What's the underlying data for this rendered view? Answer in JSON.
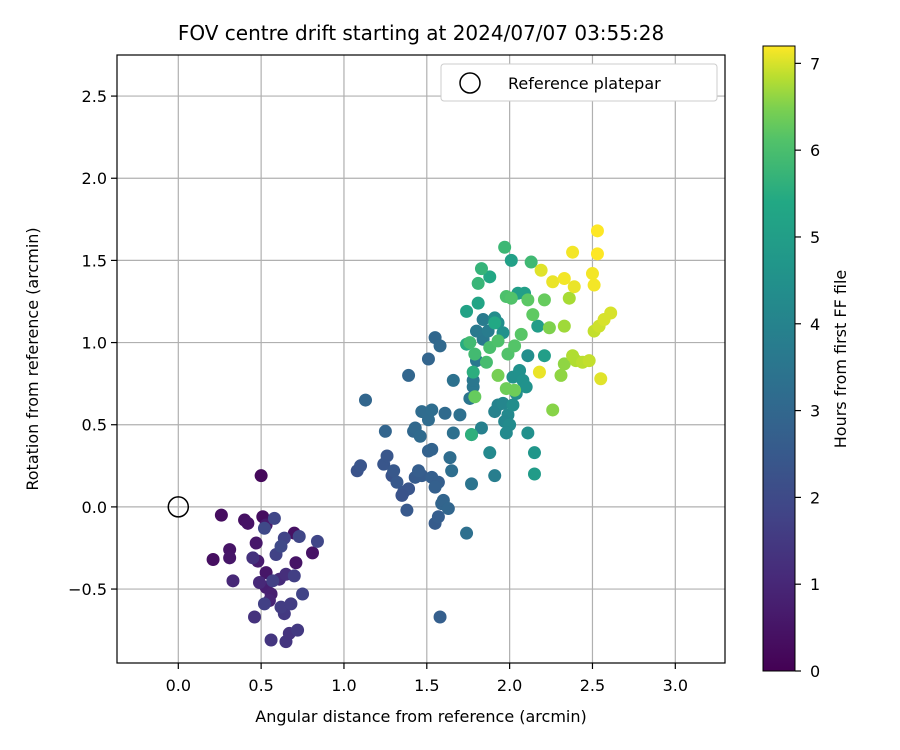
{
  "chart_data": {
    "type": "scatter",
    "title": "FOV centre drift starting at 2024/07/07 03:55:28",
    "xlabel": "Angular distance from reference (arcmin)",
    "ylabel": "Rotation from reference (arcmin)",
    "xlim": [
      -0.37,
      3.3
    ],
    "ylim": [
      -0.95,
      2.75
    ],
    "x_ticks": [
      "0.0",
      "0.5",
      "1.0",
      "1.5",
      "2.0",
      "2.5",
      "3.0"
    ],
    "x_tick_values": [
      0,
      0.5,
      1.0,
      1.5,
      2.0,
      2.5,
      3.0
    ],
    "y_ticks": [
      "−0.5",
      "0.0",
      "0.5",
      "1.0",
      "1.5",
      "2.0",
      "2.5"
    ],
    "y_tick_values": [
      -0.5,
      0,
      0.5,
      1.0,
      1.5,
      2.0,
      2.5
    ],
    "grid": true,
    "legend_position": "top-right",
    "reference": {
      "name": "Reference platepar",
      "x": 0.0,
      "y": 0.0
    },
    "colorbar": {
      "label": "Hours from first FF file",
      "colormap": "viridis",
      "range": [
        0,
        7.2
      ],
      "ticks": [
        "0",
        "1",
        "2",
        "3",
        "4",
        "5",
        "6",
        "7"
      ],
      "tick_values": [
        0,
        1,
        2,
        3,
        4,
        5,
        6,
        7
      ]
    },
    "points": [
      {
        "x": 0.5,
        "y": 0.19,
        "h": 0.2
      },
      {
        "x": 0.26,
        "y": -0.05,
        "h": 0.3
      },
      {
        "x": 0.21,
        "y": -0.32,
        "h": 0.35
      },
      {
        "x": 0.4,
        "y": -0.08,
        "h": 0.4
      },
      {
        "x": 0.42,
        "y": -0.1,
        "h": 0.45
      },
      {
        "x": 0.31,
        "y": -0.26,
        "h": 0.5
      },
      {
        "x": 0.31,
        "y": -0.31,
        "h": 0.55
      },
      {
        "x": 0.47,
        "y": -0.22,
        "h": 0.6
      },
      {
        "x": 0.51,
        "y": -0.06,
        "h": 0.3
      },
      {
        "x": 0.53,
        "y": -0.11,
        "h": 0.65
      },
      {
        "x": 0.7,
        "y": -0.16,
        "h": 0.4
      },
      {
        "x": 0.71,
        "y": -0.34,
        "h": 0.5
      },
      {
        "x": 0.81,
        "y": -0.28,
        "h": 0.45
      },
      {
        "x": 0.53,
        "y": -0.4,
        "h": 0.55
      },
      {
        "x": 0.48,
        "y": -0.33,
        "h": 0.7
      },
      {
        "x": 0.53,
        "y": -0.49,
        "h": 0.75
      },
      {
        "x": 0.56,
        "y": -0.53,
        "h": 0.8
      },
      {
        "x": 0.55,
        "y": -0.57,
        "h": 0.9
      },
      {
        "x": 0.33,
        "y": -0.45,
        "h": 1.0
      },
      {
        "x": 0.49,
        "y": -0.46,
        "h": 1.05
      },
      {
        "x": 0.61,
        "y": -0.44,
        "h": 1.1
      },
      {
        "x": 0.65,
        "y": -0.41,
        "h": 1.2
      },
      {
        "x": 0.45,
        "y": -0.31,
        "h": 1.3
      },
      {
        "x": 0.46,
        "y": -0.67,
        "h": 1.3
      },
      {
        "x": 0.56,
        "y": -0.81,
        "h": 1.4
      },
      {
        "x": 0.65,
        "y": -0.82,
        "h": 1.4
      },
      {
        "x": 0.67,
        "y": -0.77,
        "h": 1.35
      },
      {
        "x": 0.72,
        "y": -0.75,
        "h": 1.5
      },
      {
        "x": 0.64,
        "y": -0.65,
        "h": 1.5
      },
      {
        "x": 0.62,
        "y": -0.61,
        "h": 1.6
      },
      {
        "x": 0.68,
        "y": -0.59,
        "h": 1.6
      },
      {
        "x": 0.7,
        "y": -0.42,
        "h": 1.65
      },
      {
        "x": 0.52,
        "y": -0.59,
        "h": 1.7
      },
      {
        "x": 0.57,
        "y": -0.45,
        "h": 1.7
      },
      {
        "x": 0.59,
        "y": -0.29,
        "h": 1.75
      },
      {
        "x": 0.64,
        "y": -0.19,
        "h": 1.8
      },
      {
        "x": 0.73,
        "y": -0.18,
        "h": 1.85
      },
      {
        "x": 0.75,
        "y": -0.53,
        "h": 1.8
      },
      {
        "x": 0.84,
        "y": -0.21,
        "h": 1.9
      },
      {
        "x": 0.58,
        "y": -0.07,
        "h": 1.9
      },
      {
        "x": 0.52,
        "y": -0.13,
        "h": 1.95
      },
      {
        "x": 0.62,
        "y": -0.24,
        "h": 1.95
      },
      {
        "x": 1.08,
        "y": 0.22,
        "h": 2.3
      },
      {
        "x": 1.1,
        "y": 0.25,
        "h": 2.35
      },
      {
        "x": 1.24,
        "y": 0.26,
        "h": 2.4
      },
      {
        "x": 1.29,
        "y": 0.19,
        "h": 2.3
      },
      {
        "x": 1.26,
        "y": 0.31,
        "h": 2.4
      },
      {
        "x": 1.32,
        "y": 0.15,
        "h": 2.5
      },
      {
        "x": 1.3,
        "y": 0.22,
        "h": 2.45
      },
      {
        "x": 1.36,
        "y": 0.09,
        "h": 2.4
      },
      {
        "x": 1.39,
        "y": 0.11,
        "h": 2.35
      },
      {
        "x": 1.35,
        "y": 0.07,
        "h": 2.3
      },
      {
        "x": 1.38,
        "y": -0.02,
        "h": 2.5
      },
      {
        "x": 1.43,
        "y": 0.18,
        "h": 2.55
      },
      {
        "x": 1.47,
        "y": 0.19,
        "h": 2.6
      },
      {
        "x": 1.45,
        "y": 0.22,
        "h": 2.65
      },
      {
        "x": 1.53,
        "y": 0.18,
        "h": 2.7
      },
      {
        "x": 1.57,
        "y": 0.15,
        "h": 2.7
      },
      {
        "x": 1.55,
        "y": 0.12,
        "h": 2.75
      },
      {
        "x": 1.51,
        "y": 0.34,
        "h": 2.8
      },
      {
        "x": 1.53,
        "y": 0.35,
        "h": 2.85
      },
      {
        "x": 1.55,
        "y": -0.1,
        "h": 2.6
      },
      {
        "x": 1.57,
        "y": -0.06,
        "h": 2.65
      },
      {
        "x": 1.59,
        "y": 0.02,
        "h": 2.9
      },
      {
        "x": 1.6,
        "y": 0.04,
        "h": 2.9
      },
      {
        "x": 1.63,
        "y": -0.01,
        "h": 2.95
      },
      {
        "x": 1.58,
        "y": -0.67,
        "h": 2.7
      },
      {
        "x": 1.25,
        "y": 0.46,
        "h": 2.9
      },
      {
        "x": 1.13,
        "y": 0.65,
        "h": 2.95
      },
      {
        "x": 1.42,
        "y": 0.46,
        "h": 3.0
      },
      {
        "x": 1.43,
        "y": 0.48,
        "h": 3.05
      },
      {
        "x": 1.46,
        "y": 0.43,
        "h": 3.1
      },
      {
        "x": 1.51,
        "y": 0.53,
        "h": 3.15
      },
      {
        "x": 1.47,
        "y": 0.58,
        "h": 3.15
      },
      {
        "x": 1.53,
        "y": 0.59,
        "h": 3.2
      },
      {
        "x": 1.39,
        "y": 0.8,
        "h": 2.95
      },
      {
        "x": 1.51,
        "y": 0.9,
        "h": 2.9
      },
      {
        "x": 1.55,
        "y": 1.03,
        "h": 3.0
      },
      {
        "x": 1.58,
        "y": 0.98,
        "h": 3.05
      },
      {
        "x": 1.61,
        "y": 0.57,
        "h": 3.1
      },
      {
        "x": 1.64,
        "y": 0.3,
        "h": 3.2
      },
      {
        "x": 1.65,
        "y": 0.22,
        "h": 3.25
      },
      {
        "x": 1.66,
        "y": 0.45,
        "h": 3.3
      },
      {
        "x": 1.7,
        "y": 0.56,
        "h": 3.3
      },
      {
        "x": 1.66,
        "y": 0.77,
        "h": 3.35
      },
      {
        "x": 1.74,
        "y": -0.16,
        "h": 3.3
      },
      {
        "x": 1.77,
        "y": 0.14,
        "h": 3.45
      },
      {
        "x": 1.77,
        "y": 0.44,
        "h": 3.5
      },
      {
        "x": 1.76,
        "y": 0.66,
        "h": 3.5
      },
      {
        "x": 1.78,
        "y": 0.73,
        "h": 3.55
      },
      {
        "x": 1.78,
        "y": 0.77,
        "h": 3.55
      },
      {
        "x": 1.8,
        "y": 0.89,
        "h": 3.6
      },
      {
        "x": 1.84,
        "y": 1.02,
        "h": 3.6
      },
      {
        "x": 1.8,
        "y": 1.07,
        "h": 3.65
      },
      {
        "x": 1.84,
        "y": 1.14,
        "h": 3.7
      },
      {
        "x": 1.87,
        "y": 1.07,
        "h": 3.75
      },
      {
        "x": 1.91,
        "y": 0.19,
        "h": 3.8
      },
      {
        "x": 1.88,
        "y": 0.33,
        "h": 4.2
      },
      {
        "x": 1.83,
        "y": 0.48,
        "h": 3.9
      },
      {
        "x": 1.91,
        "y": 0.58,
        "h": 3.95
      },
      {
        "x": 1.93,
        "y": 0.62,
        "h": 4.0
      },
      {
        "x": 1.96,
        "y": 0.63,
        "h": 4.1
      },
      {
        "x": 1.99,
        "y": 0.56,
        "h": 4.2
      },
      {
        "x": 1.97,
        "y": 0.52,
        "h": 4.15
      },
      {
        "x": 2.0,
        "y": 0.5,
        "h": 4.3
      },
      {
        "x": 1.98,
        "y": 0.45,
        "h": 4.25
      },
      {
        "x": 2.02,
        "y": 0.62,
        "h": 4.35
      },
      {
        "x": 2.04,
        "y": 0.69,
        "h": 4.4
      },
      {
        "x": 2.02,
        "y": 0.79,
        "h": 4.45
      },
      {
        "x": 2.06,
        "y": 0.83,
        "h": 4.5
      },
      {
        "x": 2.08,
        "y": 0.77,
        "h": 4.55
      },
      {
        "x": 2.1,
        "y": 0.73,
        "h": 4.55
      },
      {
        "x": 2.11,
        "y": 0.92,
        "h": 4.4
      },
      {
        "x": 1.91,
        "y": 1.15,
        "h": 4.35
      },
      {
        "x": 1.93,
        "y": 1.12,
        "h": 4.4
      },
      {
        "x": 1.96,
        "y": 1.06,
        "h": 4.5
      },
      {
        "x": 2.11,
        "y": 0.45,
        "h": 4.45
      },
      {
        "x": 2.15,
        "y": 0.33,
        "h": 4.7
      },
      {
        "x": 2.15,
        "y": 0.2,
        "h": 4.9
      },
      {
        "x": 2.17,
        "y": 1.1,
        "h": 4.95
      },
      {
        "x": 2.21,
        "y": 0.92,
        "h": 5.0
      },
      {
        "x": 2.05,
        "y": 1.3,
        "h": 5.0
      },
      {
        "x": 2.09,
        "y": 1.3,
        "h": 5.05
      },
      {
        "x": 2.01,
        "y": 1.5,
        "h": 5.1
      },
      {
        "x": 1.74,
        "y": 1.19,
        "h": 5.15
      },
      {
        "x": 1.81,
        "y": 1.24,
        "h": 5.25
      },
      {
        "x": 1.88,
        "y": 1.4,
        "h": 5.35
      },
      {
        "x": 1.91,
        "y": 1.12,
        "h": 5.4
      },
      {
        "x": 1.74,
        "y": 0.99,
        "h": 5.5
      },
      {
        "x": 1.78,
        "y": 0.82,
        "h": 5.55
      },
      {
        "x": 1.77,
        "y": 0.44,
        "h": 5.6
      },
      {
        "x": 1.83,
        "y": 1.45,
        "h": 5.7
      },
      {
        "x": 1.81,
        "y": 1.36,
        "h": 5.75
      },
      {
        "x": 1.97,
        "y": 1.58,
        "h": 5.8
      },
      {
        "x": 2.13,
        "y": 1.49,
        "h": 5.85
      },
      {
        "x": 1.76,
        "y": 1.0,
        "h": 5.9
      },
      {
        "x": 1.79,
        "y": 0.93,
        "h": 5.9
      },
      {
        "x": 1.86,
        "y": 0.88,
        "h": 5.95
      },
      {
        "x": 1.88,
        "y": 0.97,
        "h": 6.0
      },
      {
        "x": 1.93,
        "y": 1.01,
        "h": 6.05
      },
      {
        "x": 1.98,
        "y": 1.28,
        "h": 6.05
      },
      {
        "x": 2.01,
        "y": 1.27,
        "h": 6.1
      },
      {
        "x": 1.99,
        "y": 0.93,
        "h": 6.1
      },
      {
        "x": 2.03,
        "y": 0.98,
        "h": 6.15
      },
      {
        "x": 2.07,
        "y": 1.05,
        "h": 6.2
      },
      {
        "x": 2.11,
        "y": 1.26,
        "h": 6.25
      },
      {
        "x": 2.14,
        "y": 1.17,
        "h": 6.3
      },
      {
        "x": 2.21,
        "y": 1.26,
        "h": 6.35
      },
      {
        "x": 1.98,
        "y": 0.72,
        "h": 6.4
      },
      {
        "x": 2.03,
        "y": 0.71,
        "h": 6.4
      },
      {
        "x": 1.93,
        "y": 0.8,
        "h": 6.45
      },
      {
        "x": 1.79,
        "y": 0.67,
        "h": 6.35
      },
      {
        "x": 2.24,
        "y": 1.09,
        "h": 6.5
      },
      {
        "x": 2.26,
        "y": 0.59,
        "h": 6.55
      },
      {
        "x": 2.31,
        "y": 0.8,
        "h": 6.6
      },
      {
        "x": 2.33,
        "y": 0.87,
        "h": 6.6
      },
      {
        "x": 2.33,
        "y": 1.1,
        "h": 6.7
      },
      {
        "x": 2.36,
        "y": 1.27,
        "h": 6.75
      },
      {
        "x": 2.38,
        "y": 0.92,
        "h": 6.8
      },
      {
        "x": 2.4,
        "y": 0.89,
        "h": 6.8
      },
      {
        "x": 2.44,
        "y": 0.88,
        "h": 6.85
      },
      {
        "x": 2.48,
        "y": 0.89,
        "h": 6.9
      },
      {
        "x": 2.51,
        "y": 1.07,
        "h": 6.9
      },
      {
        "x": 2.54,
        "y": 1.1,
        "h": 6.95
      },
      {
        "x": 2.57,
        "y": 1.14,
        "h": 7.0
      },
      {
        "x": 2.61,
        "y": 1.18,
        "h": 7.0
      },
      {
        "x": 2.55,
        "y": 0.78,
        "h": 7.05
      },
      {
        "x": 2.18,
        "y": 0.82,
        "h": 7.1
      },
      {
        "x": 2.19,
        "y": 1.44,
        "h": 7.05
      },
      {
        "x": 2.26,
        "y": 1.37,
        "h": 7.1
      },
      {
        "x": 2.33,
        "y": 1.39,
        "h": 7.15
      },
      {
        "x": 2.39,
        "y": 1.34,
        "h": 7.1
      },
      {
        "x": 2.38,
        "y": 1.55,
        "h": 7.15
      },
      {
        "x": 2.5,
        "y": 1.42,
        "h": 7.15
      },
      {
        "x": 2.51,
        "y": 1.35,
        "h": 7.15
      },
      {
        "x": 2.53,
        "y": 1.54,
        "h": 7.2
      },
      {
        "x": 2.53,
        "y": 1.68,
        "h": 7.2
      }
    ]
  }
}
